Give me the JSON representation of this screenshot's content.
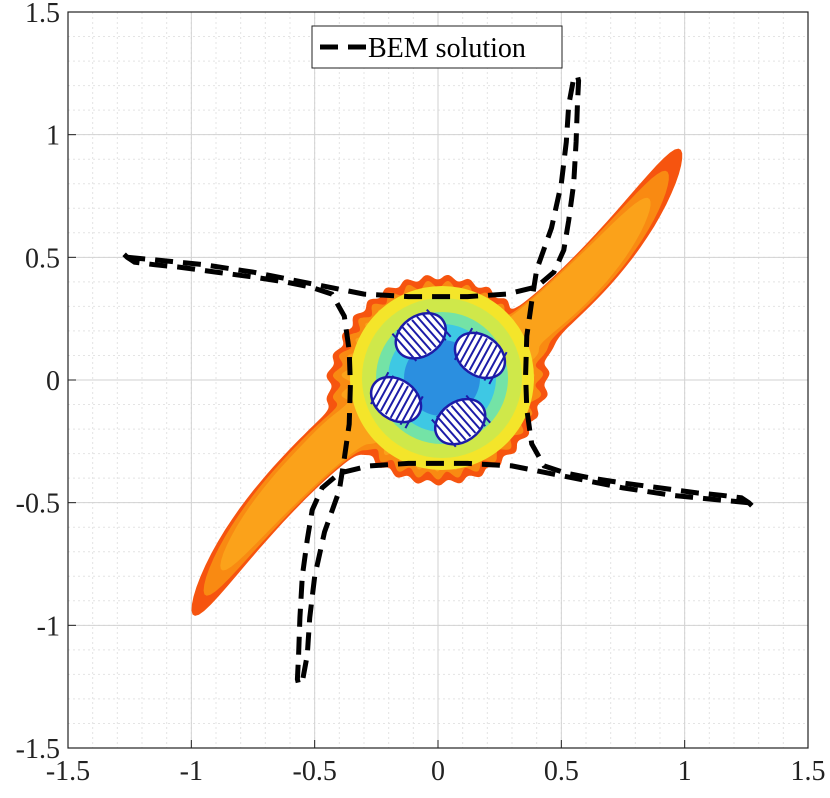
{
  "chart_data": {
    "type": "line",
    "xlim": [
      -1.5,
      1.5
    ],
    "ylim": [
      -1.5,
      1.5
    ],
    "x_ticks": [
      "-1.5",
      "-1",
      "-0.5",
      "0",
      "0.5",
      "1",
      "1.5"
    ],
    "y_ticks": [
      "1.5",
      "1",
      "0.5",
      "0",
      "-0.5",
      "-1",
      "-1.5"
    ],
    "grid": true,
    "minor_grid": true,
    "legend": {
      "entries": [
        "BEM solution"
      ],
      "placement": "top-center"
    },
    "series": [
      {
        "name": "BEM solution",
        "style": "dashed",
        "color": "#000000",
        "x": [
          -1.26,
          -1.15,
          -0.95,
          -0.75,
          -0.55,
          -0.4,
          -0.3,
          -0.12,
          0.0,
          0.12,
          0.28,
          0.4,
          0.47,
          0.51,
          0.53,
          0.55,
          0.56,
          0.565,
          0.57,
          0.565,
          0.55,
          0.53,
          0.52,
          0.5,
          0.46,
          0.4,
          0.38,
          0.36,
          0.355,
          0.36,
          0.38,
          0.43,
          0.52,
          0.62,
          0.75,
          0.9,
          1.05,
          1.15,
          1.23,
          1.26,
          1.29
        ],
        "y": [
          0.5,
          0.49,
          0.47,
          0.44,
          0.4,
          0.37,
          0.35,
          0.34,
          0.34,
          0.34,
          0.35,
          0.38,
          0.44,
          0.53,
          0.65,
          0.8,
          0.97,
          1.12,
          1.22,
          1.24,
          1.23,
          1.12,
          0.97,
          0.8,
          0.62,
          0.45,
          0.32,
          0.18,
          0.02,
          -0.12,
          -0.26,
          -0.35,
          -0.38,
          -0.4,
          -0.42,
          -0.44,
          -0.46,
          -0.47,
          -0.48,
          -0.5,
          -0.53
        ]
      }
    ],
    "colormap_region": "star-shaped filled contour field (blue-cyan-yellow-orange-red) with four hatched holes near the center"
  }
}
